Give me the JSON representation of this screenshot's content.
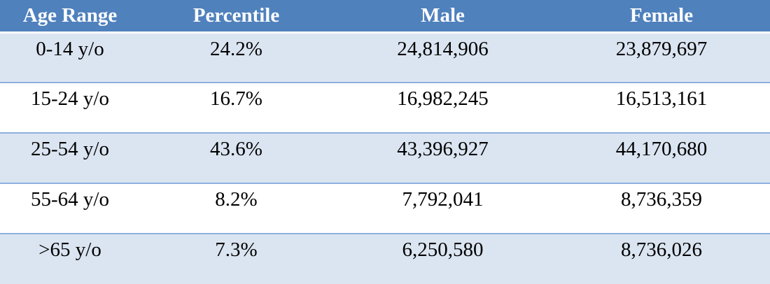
{
  "table": {
    "headers": [
      "Age Range",
      "Percentile",
      "Male",
      "Female"
    ],
    "rows": [
      [
        "0-14 y/o",
        "24.2%",
        "24,814,906",
        "23,879,697"
      ],
      [
        "15-24 y/o",
        "16.7%",
        "16,982,245",
        "16,513,161"
      ],
      [
        "25-54 y/o",
        "43.6%",
        "43,396,927",
        "44,170,680"
      ],
      [
        "55-64 y/o",
        "8.2%",
        "7,792,041",
        "8,736,359"
      ],
      [
        ">65 y/o",
        "7.3%",
        "6,250,580",
        "8,736,026"
      ]
    ]
  },
  "colors": {
    "header_bg": "#4f81bd",
    "header_text": "#ffffff",
    "band_shaded": "#dbe5f1",
    "band_plain": "#ffffff",
    "row_divider": "#8db0de"
  }
}
